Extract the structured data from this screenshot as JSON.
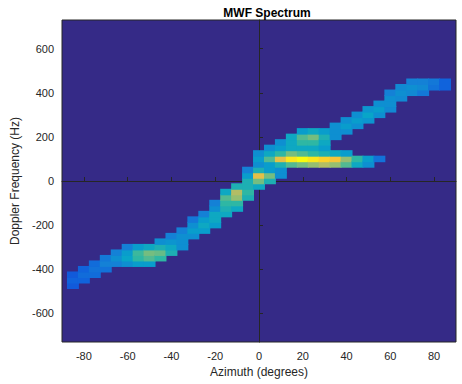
{
  "chart_data": {
    "type": "heatmap",
    "title": "MWF Spectrum",
    "x_label": "Azimuth (degrees)",
    "y_label": "Doppler Frequency (Hz)",
    "xlim": [
      -90,
      90
    ],
    "xticks": [
      -80,
      -60,
      -40,
      -20,
      0,
      20,
      40,
      60,
      80
    ],
    "ylim": [
      -730,
      730
    ],
    "yticks": [
      -600,
      -400,
      -200,
      0,
      200,
      400,
      600
    ],
    "grid": false,
    "cell_size": [
      5,
      25
    ],
    "zlim": [
      0,
      1
    ],
    "cells": [
      [
        -85,
        -475,
        0.12
      ],
      [
        -85,
        -450,
        0.15
      ],
      [
        -85,
        -425,
        0.12
      ],
      [
        -80,
        -450,
        0.15
      ],
      [
        -80,
        -425,
        0.18
      ],
      [
        -80,
        -400,
        0.15
      ],
      [
        -75,
        -425,
        0.18
      ],
      [
        -75,
        -400,
        0.2
      ],
      [
        -75,
        -375,
        0.18
      ],
      [
        -70,
        -400,
        0.2
      ],
      [
        -70,
        -375,
        0.25
      ],
      [
        -70,
        -350,
        0.22
      ],
      [
        -65,
        -375,
        0.25
      ],
      [
        -65,
        -350,
        0.3
      ],
      [
        -65,
        -325,
        0.25
      ],
      [
        -60,
        -375,
        0.3
      ],
      [
        -60,
        -350,
        0.38
      ],
      [
        -60,
        -325,
        0.35
      ],
      [
        -60,
        -300,
        0.25
      ],
      [
        -55,
        -375,
        0.35
      ],
      [
        -55,
        -350,
        0.5
      ],
      [
        -55,
        -325,
        0.52
      ],
      [
        -55,
        -300,
        0.35
      ],
      [
        -50,
        -375,
        0.35
      ],
      [
        -50,
        -350,
        0.55
      ],
      [
        -50,
        -325,
        0.6
      ],
      [
        -50,
        -300,
        0.4
      ],
      [
        -45,
        -350,
        0.5
      ],
      [
        -45,
        -325,
        0.58
      ],
      [
        -45,
        -300,
        0.45
      ],
      [
        -45,
        -275,
        0.3
      ],
      [
        -40,
        -325,
        0.45
      ],
      [
        -40,
        -300,
        0.4
      ],
      [
        -40,
        -275,
        0.32
      ],
      [
        -40,
        -250,
        0.25
      ],
      [
        -35,
        -300,
        0.3
      ],
      [
        -35,
        -275,
        0.3
      ],
      [
        -35,
        -250,
        0.3
      ],
      [
        -35,
        -225,
        0.25
      ],
      [
        -30,
        -250,
        0.3
      ],
      [
        -30,
        -225,
        0.35
      ],
      [
        -30,
        -200,
        0.3
      ],
      [
        -30,
        -175,
        0.22
      ],
      [
        -25,
        -225,
        0.35
      ],
      [
        -25,
        -200,
        0.4
      ],
      [
        -25,
        -175,
        0.35
      ],
      [
        -25,
        -150,
        0.25
      ],
      [
        -20,
        -200,
        0.35
      ],
      [
        -20,
        -175,
        0.4
      ],
      [
        -20,
        -150,
        0.4
      ],
      [
        -20,
        -125,
        0.3
      ],
      [
        -20,
        -100,
        0.25
      ],
      [
        -15,
        -150,
        0.4
      ],
      [
        -15,
        -125,
        0.45
      ],
      [
        -15,
        -100,
        0.5
      ],
      [
        -15,
        -75,
        0.55
      ],
      [
        -15,
        -50,
        0.4
      ],
      [
        -10,
        -125,
        0.4
      ],
      [
        -10,
        -100,
        0.5
      ],
      [
        -10,
        -75,
        0.65
      ],
      [
        -10,
        -50,
        0.7
      ],
      [
        -10,
        -25,
        0.45
      ],
      [
        -5,
        -75,
        0.45
      ],
      [
        -5,
        -50,
        0.5
      ],
      [
        -5,
        -25,
        0.45
      ],
      [
        -5,
        0,
        0.45
      ],
      [
        -5,
        25,
        0.35
      ],
      [
        -5,
        50,
        0.25
      ],
      [
        0,
        -25,
        0.4
      ],
      [
        0,
        0,
        0.6
      ],
      [
        0,
        25,
        0.8
      ],
      [
        0,
        50,
        0.45
      ],
      [
        0,
        75,
        0.3
      ],
      [
        0,
        100,
        0.35
      ],
      [
        0,
        125,
        0.3
      ],
      [
        5,
        0,
        0.45
      ],
      [
        5,
        25,
        0.6
      ],
      [
        5,
        50,
        0.35
      ],
      [
        5,
        75,
        0.35
      ],
      [
        5,
        100,
        0.55
      ],
      [
        5,
        125,
        0.4
      ],
      [
        5,
        150,
        0.3
      ],
      [
        10,
        25,
        0.3
      ],
      [
        10,
        50,
        0.3
      ],
      [
        10,
        75,
        0.45
      ],
      [
        10,
        100,
        0.8
      ],
      [
        10,
        125,
        0.5
      ],
      [
        10,
        150,
        0.35
      ],
      [
        10,
        175,
        0.3
      ],
      [
        15,
        75,
        0.55
      ],
      [
        15,
        100,
        0.95
      ],
      [
        15,
        125,
        0.6
      ],
      [
        15,
        150,
        0.4
      ],
      [
        15,
        175,
        0.4
      ],
      [
        15,
        200,
        0.4
      ],
      [
        20,
        75,
        0.6
      ],
      [
        20,
        100,
        1.0
      ],
      [
        20,
        125,
        0.55
      ],
      [
        20,
        150,
        0.4
      ],
      [
        20,
        175,
        0.5
      ],
      [
        20,
        200,
        0.55
      ],
      [
        20,
        225,
        0.35
      ],
      [
        25,
        75,
        0.65
      ],
      [
        25,
        100,
        0.95
      ],
      [
        25,
        125,
        0.5
      ],
      [
        25,
        150,
        0.4
      ],
      [
        25,
        175,
        0.5
      ],
      [
        25,
        200,
        0.6
      ],
      [
        25,
        225,
        0.4
      ],
      [
        30,
        75,
        0.7
      ],
      [
        30,
        100,
        0.9
      ],
      [
        30,
        125,
        0.45
      ],
      [
        30,
        150,
        0.35
      ],
      [
        30,
        175,
        0.4
      ],
      [
        30,
        200,
        0.45
      ],
      [
        30,
        225,
        0.35
      ],
      [
        35,
        75,
        0.65
      ],
      [
        35,
        100,
        0.85
      ],
      [
        35,
        125,
        0.4
      ],
      [
        35,
        200,
        0.3
      ],
      [
        35,
        225,
        0.3
      ],
      [
        35,
        250,
        0.3
      ],
      [
        40,
        75,
        0.55
      ],
      [
        40,
        100,
        0.65
      ],
      [
        40,
        125,
        0.35
      ],
      [
        40,
        225,
        0.3
      ],
      [
        40,
        250,
        0.35
      ],
      [
        40,
        275,
        0.3
      ],
      [
        45,
        75,
        0.4
      ],
      [
        45,
        100,
        0.5
      ],
      [
        45,
        250,
        0.3
      ],
      [
        45,
        275,
        0.35
      ],
      [
        45,
        300,
        0.3
      ],
      [
        50,
        75,
        0.3
      ],
      [
        50,
        100,
        0.35
      ],
      [
        50,
        275,
        0.32
      ],
      [
        50,
        300,
        0.38
      ],
      [
        50,
        325,
        0.32
      ],
      [
        55,
        100,
        0.2
      ],
      [
        55,
        300,
        0.3
      ],
      [
        55,
        325,
        0.35
      ],
      [
        55,
        350,
        0.3
      ],
      [
        60,
        325,
        0.28
      ],
      [
        60,
        350,
        0.3
      ],
      [
        60,
        375,
        0.3
      ],
      [
        60,
        400,
        0.25
      ],
      [
        65,
        375,
        0.28
      ],
      [
        65,
        400,
        0.3
      ],
      [
        65,
        425,
        0.28
      ],
      [
        70,
        400,
        0.28
      ],
      [
        70,
        425,
        0.3
      ],
      [
        70,
        450,
        0.25
      ],
      [
        75,
        400,
        0.22
      ],
      [
        75,
        425,
        0.28
      ],
      [
        75,
        450,
        0.25
      ],
      [
        80,
        425,
        0.2
      ],
      [
        80,
        450,
        0.22
      ],
      [
        85,
        425,
        0.15
      ],
      [
        85,
        450,
        0.15
      ]
    ]
  }
}
